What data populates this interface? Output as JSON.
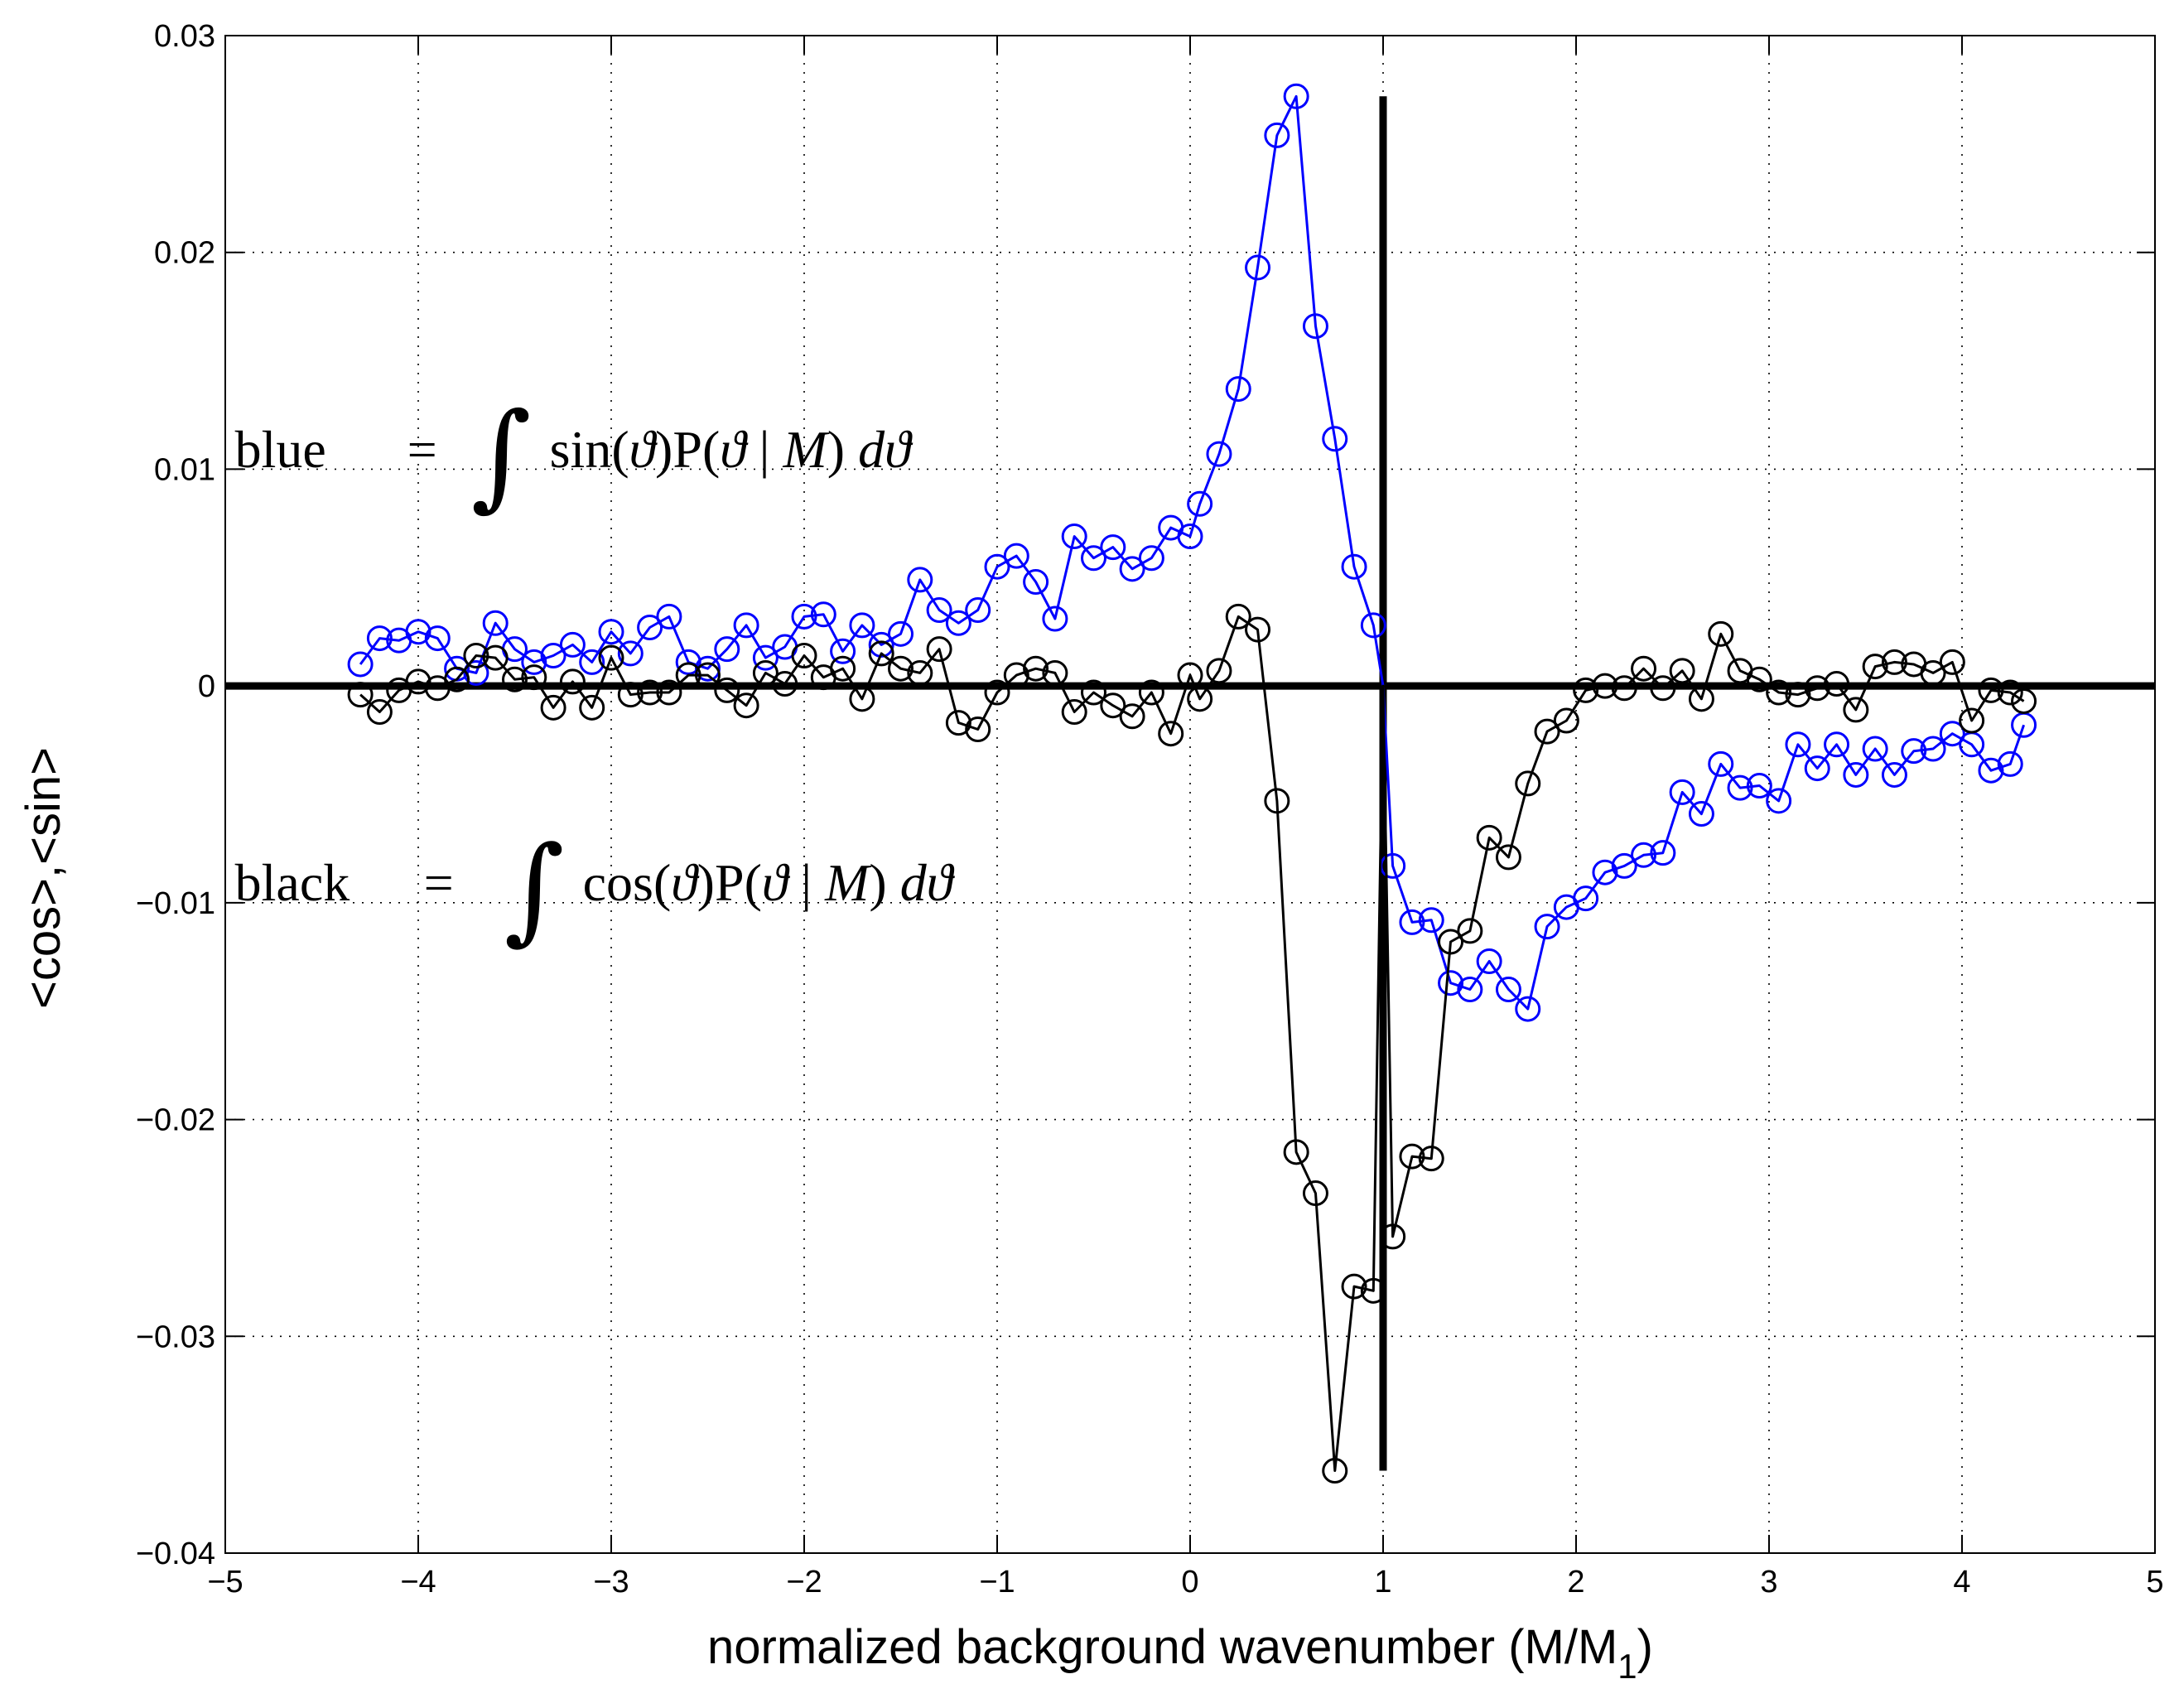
{
  "chart_data": {
    "type": "line",
    "title": "",
    "xlabel": "normalized background wavenumber (M/M",
    "xlabel_subscript": "1",
    "xlabel_suffix": ")",
    "ylabel": "<cos>,<sin>",
    "xlim": [
      -5,
      5
    ],
    "ylim": [
      -0.04,
      0.03
    ],
    "xticks": [
      -5,
      -4,
      -3,
      -2,
      -1,
      0,
      1,
      2,
      3,
      4,
      5
    ],
    "xtick_labels": [
      "−5",
      "−4",
      "−3",
      "−2",
      "−1",
      "0",
      "1",
      "2",
      "3",
      "4",
      "5"
    ],
    "yticks": [
      -0.04,
      -0.03,
      -0.02,
      -0.01,
      0,
      0.01,
      0.02,
      0.03
    ],
    "ytick_labels": [
      "−0.04",
      "−0.03",
      "−0.02",
      "−0.01",
      "0",
      "0.01",
      "0.02",
      "0.03"
    ],
    "grid": true,
    "reference_lines": [
      {
        "orientation": "horizontal",
        "value": 0,
        "y_range": null
      },
      {
        "orientation": "vertical",
        "value": 1,
        "y_range": [
          -0.0362,
          0.0272
        ]
      }
    ],
    "annotations": [
      {
        "id": "blue",
        "lhs": "blue",
        "eq": "=",
        "integral": "∫",
        "func": "sin(",
        "theta": "ϑ",
        "mid": ")P(",
        "bar": " | ",
        "m": "M",
        "close": ")",
        "d": "d",
        "anchor_x": -4.95,
        "anchor_y": 0.0101
      },
      {
        "id": "black",
        "lhs": "black",
        "eq": "=",
        "integral": "∫",
        "func": "cos(",
        "theta": "ϑ",
        "mid": ")P(",
        "bar": " | ",
        "m": "M",
        "close": ")",
        "d": "d",
        "anchor_x": -4.95,
        "anchor_y": -0.0099
      }
    ],
    "series": [
      {
        "name": "blue",
        "color": "#0000ff",
        "x": [
          -4.3,
          -4.2,
          -4.1,
          -4.0,
          -3.9,
          -3.8,
          -3.7,
          -3.6,
          -3.5,
          -3.4,
          -3.3,
          -3.2,
          -3.1,
          -3.0,
          -2.9,
          -2.8,
          -2.7,
          -2.6,
          -2.5,
          -2.4,
          -2.3,
          -2.2,
          -2.1,
          -2.0,
          -1.9,
          -1.8,
          -1.7,
          -1.6,
          -1.5,
          -1.4,
          -1.3,
          -1.2,
          -1.1,
          -1.0,
          -0.9,
          -0.8,
          -0.7,
          -0.6,
          -0.5,
          -0.4,
          -0.3,
          -0.2,
          -0.1,
          0.0,
          0.05,
          0.15,
          0.25,
          0.35,
          0.45,
          0.55,
          0.65,
          0.75,
          0.85,
          0.95,
          1.0,
          1.05,
          1.15,
          1.25,
          1.35,
          1.45,
          1.55,
          1.65,
          1.75,
          1.85,
          1.95,
          2.05,
          2.15,
          2.25,
          2.35,
          2.45,
          2.55,
          2.65,
          2.75,
          2.85,
          2.95,
          3.05,
          3.15,
          3.25,
          3.35,
          3.45,
          3.55,
          3.65,
          3.75,
          3.85,
          3.95,
          4.05,
          4.15,
          4.25,
          4.32
        ],
        "y": [
          0.001,
          0.0022,
          0.0021,
          0.0025,
          0.0022,
          0.0008,
          0.0006,
          0.0029,
          0.0017,
          0.0011,
          0.0014,
          0.0019,
          0.0011,
          0.0025,
          0.0015,
          0.0027,
          0.0032,
          0.0011,
          0.0008,
          0.0017,
          0.0028,
          0.0013,
          0.0018,
          0.0032,
          0.0033,
          0.0016,
          0.0028,
          0.0019,
          0.0024,
          0.0049,
          0.0035,
          0.0029,
          0.0035,
          0.0055,
          0.006,
          0.0048,
          0.0031,
          0.0069,
          0.0059,
          0.0064,
          0.0054,
          0.0059,
          0.0073,
          0.0069,
          0.0084,
          0.0107,
          0.0137,
          0.0193,
          0.0254,
          0.0272,
          0.0166,
          0.0114,
          0.0055,
          0.0028,
          0.0,
          -0.0083,
          -0.0109,
          -0.0108,
          -0.0137,
          -0.014,
          -0.0127,
          -0.014,
          -0.0149,
          -0.0111,
          -0.0102,
          -0.0098,
          -0.0086,
          -0.0083,
          -0.0078,
          -0.0077,
          -0.0049,
          -0.0059,
          -0.0036,
          -0.0047,
          -0.0046,
          -0.0053,
          -0.0027,
          -0.0038,
          -0.0027,
          -0.0041,
          -0.0029,
          -0.0041,
          -0.003,
          -0.0029,
          -0.0022,
          -0.0027,
          -0.0039,
          -0.0036,
          -0.0018
        ]
      },
      {
        "name": "black",
        "color": "#000000",
        "x": [
          -4.3,
          -4.2,
          -4.1,
          -4.0,
          -3.9,
          -3.8,
          -3.7,
          -3.6,
          -3.5,
          -3.4,
          -3.3,
          -3.2,
          -3.1,
          -3.0,
          -2.9,
          -2.8,
          -2.7,
          -2.6,
          -2.5,
          -2.4,
          -2.3,
          -2.2,
          -2.1,
          -2.0,
          -1.9,
          -1.8,
          -1.7,
          -1.6,
          -1.5,
          -1.4,
          -1.3,
          -1.2,
          -1.1,
          -1.0,
          -0.9,
          -0.8,
          -0.7,
          -0.6,
          -0.5,
          -0.4,
          -0.3,
          -0.2,
          -0.1,
          0.0,
          0.05,
          0.15,
          0.25,
          0.35,
          0.45,
          0.55,
          0.65,
          0.75,
          0.85,
          0.95,
          1.0,
          1.05,
          1.15,
          1.25,
          1.35,
          1.45,
          1.55,
          1.65,
          1.75,
          1.85,
          1.95,
          2.05,
          2.15,
          2.25,
          2.35,
          2.45,
          2.55,
          2.65,
          2.75,
          2.85,
          2.95,
          3.05,
          3.15,
          3.25,
          3.35,
          3.45,
          3.55,
          3.65,
          3.75,
          3.85,
          3.95,
          4.05,
          4.15,
          4.25,
          4.32
        ],
        "y": [
          -0.0004,
          -0.0012,
          -0.0002,
          0.0002,
          -0.0001,
          0.0003,
          0.0014,
          0.0013,
          0.0003,
          0.0004,
          -0.001,
          0.0002,
          -0.001,
          0.0013,
          -0.0004,
          -0.0003,
          -0.0003,
          0.0005,
          0.0005,
          -0.0002,
          -0.0009,
          0.0006,
          0.0001,
          0.0014,
          0.0004,
          0.0008,
          -0.0006,
          0.0015,
          0.0008,
          0.0006,
          0.0017,
          -0.0017,
          -0.002,
          -0.0003,
          0.0005,
          0.0008,
          0.0006,
          -0.0012,
          -0.0003,
          -0.0009,
          -0.0014,
          -0.0003,
          -0.0022,
          0.0005,
          -0.0006,
          0.0007,
          0.0032,
          0.0026,
          -0.0053,
          -0.0215,
          -0.0234,
          -0.0362,
          -0.0277,
          -0.0279,
          0.0,
          -0.0254,
          -0.0217,
          -0.0218,
          -0.0118,
          -0.0113,
          -0.007,
          -0.0079,
          -0.0045,
          -0.0021,
          -0.0016,
          -0.0002,
          0.0,
          -0.0001,
          0.0008,
          -0.0001,
          0.0007,
          -0.0006,
          0.0024,
          0.0007,
          0.0003,
          -0.0003,
          -0.0004,
          -0.0001,
          0.0001,
          -0.0011,
          0.0009,
          0.0011,
          0.001,
          0.0006,
          0.0011,
          -0.0016,
          -0.0002,
          -0.0003,
          -0.0007
        ]
      }
    ]
  }
}
